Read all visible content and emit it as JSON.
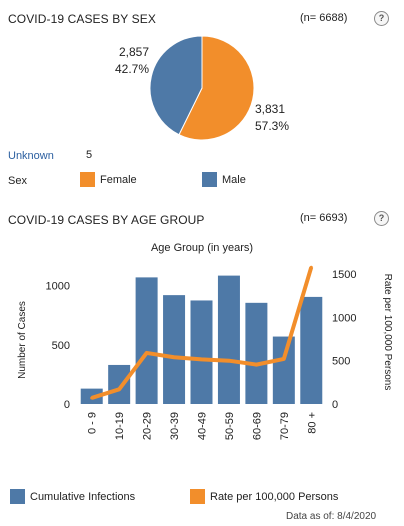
{
  "sex_section": {
    "title": "COVID-19 CASES BY SEX",
    "n": "(n= 6688)",
    "help": "?",
    "male_count": "2,857",
    "male_pct": "42.7%",
    "female_count": "3,831",
    "female_pct": "57.3%",
    "unknown_label": "Unknown",
    "unknown_value": "5",
    "legend_title": "Sex",
    "legend_female": "Female",
    "legend_male": "Male"
  },
  "age_section": {
    "title": "COVID-19 CASES BY AGE GROUP",
    "n": "(n= 6693)",
    "help": "?",
    "chart_title": "Age Group (in years)",
    "legend_bar": "Cumulative Infections",
    "legend_line": "Rate per 100,000 Persons"
  },
  "footer": {
    "data_as_of": "Data as of:  8/4/2020"
  },
  "colors": {
    "female": "#f28e2b",
    "male": "#4e79a7",
    "bar": "#4e79a7",
    "line": "#f28e2b"
  },
  "chart_data": [
    {
      "type": "pie",
      "labels": [
        "Female",
        "Male"
      ],
      "values": [
        3831,
        2857
      ],
      "percents": [
        57.3,
        42.7
      ],
      "legend": [
        "Female",
        "Male"
      ]
    },
    {
      "type": "bar",
      "title": "Age Group (in years)",
      "categories": [
        "0 - 9",
        "10-19",
        "20-29",
        "30-39",
        "40-49",
        "50-59",
        "60-69",
        "70-79",
        "80 +"
      ],
      "series": [
        {
          "name": "Cumulative Infections",
          "type": "bar",
          "axis": "left",
          "values": [
            130,
            330,
            1070,
            920,
            875,
            1085,
            855,
            570,
            905
          ]
        },
        {
          "name": "Rate per 100,000 Persons",
          "type": "line",
          "axis": "right",
          "values": [
            70,
            170,
            590,
            540,
            515,
            500,
            455,
            520,
            1580
          ]
        }
      ],
      "ylabel_left": "Number of Cases",
      "ylabel_right": "Rate per 100,000 Persons",
      "ylim_left": [
        0,
        1200
      ],
      "ylim_right": [
        0,
        1640
      ],
      "yticks_left": [
        "0",
        "500",
        "1000"
      ],
      "yticks_right": [
        "0",
        "500",
        "1000",
        "1500"
      ],
      "grid": false,
      "legend_position": "bottom"
    }
  ]
}
